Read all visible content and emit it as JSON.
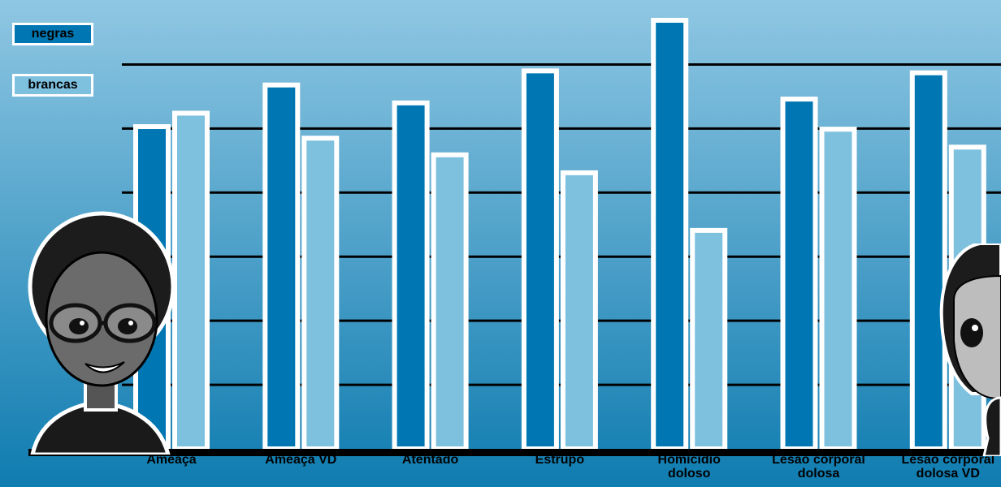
{
  "colors": {
    "negras": "#0077b3",
    "brancas": "#7ec1df",
    "background_top": "#8fc7e3",
    "background_bottom": "#0f7cb0"
  },
  "chart_data": {
    "type": "bar",
    "categories": [
      "Ameaça",
      "Ameaça VD",
      "Atentado",
      "Estrupo",
      "Homicídio\ndoloso",
      "Lesão corporal\ndolosa",
      "Lesão corporal\ndolosa VD"
    ],
    "series": [
      {
        "name": "negras",
        "values": [
          50.3,
          56.8,
          54.0,
          59.0,
          66.9,
          54.6,
          58.7
        ]
      },
      {
        "name": "brancas",
        "values": [
          52.4,
          48.5,
          45.9,
          43.1,
          34.1,
          49.9,
          47.1
        ]
      }
    ],
    "ylim": [
      0,
      65
    ],
    "grid": true,
    "legend_position": "top-left",
    "ytick_labels_shown": false
  },
  "decorations": {
    "left_avatar": "woman-glasses-avatar",
    "right_avatar": "woman-avatar-cropped"
  }
}
